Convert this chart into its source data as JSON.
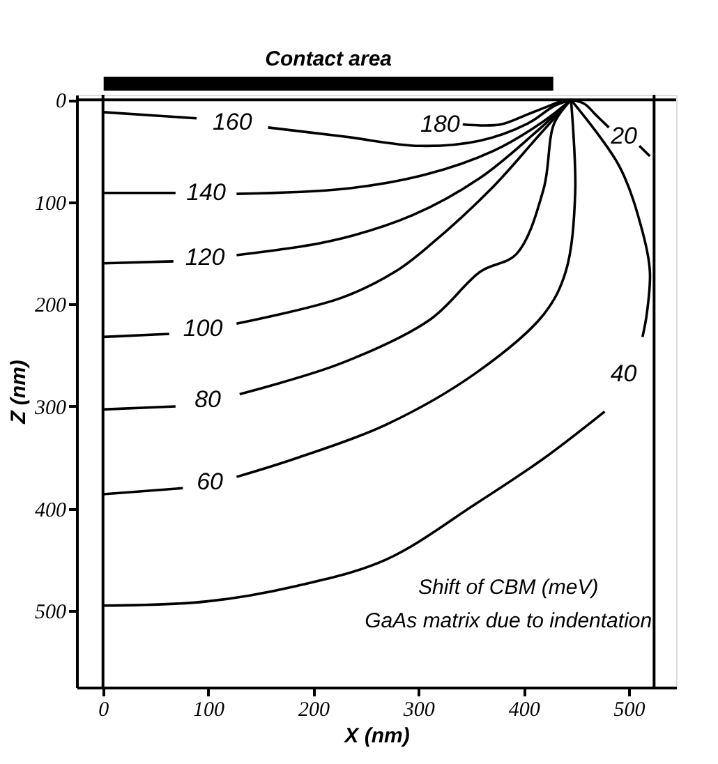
{
  "chart_data": {
    "type": "line",
    "xlabel": "X (nm)",
    "ylabel": "Z (nm)",
    "xlim": [
      -25,
      545
    ],
    "ylim": [
      575,
      -5
    ],
    "xticks": [
      0,
      100,
      200,
      300,
      400,
      500
    ],
    "yticks": [
      0,
      100,
      200,
      300,
      400,
      500
    ],
    "grid": false,
    "marker": "none",
    "line_style": "solid",
    "series": [
      {
        "name": "180",
        "color": "#000000",
        "x": [
          342,
          378,
          404,
          436
        ],
        "values": [
          24,
          24,
          14,
          1
        ]
      },
      {
        "name": "160",
        "color": "#000000",
        "x": [
          0,
          89,
          123,
          157,
          230,
          301,
          358,
          404,
          429,
          445
        ],
        "values": [
          12,
          18,
          null,
          27,
          36,
          45,
          40,
          23,
          6,
          0
        ]
      },
      {
        "name": "140",
        "color": "#000000",
        "x": [
          0,
          69,
          98,
          127,
          230,
          307,
          371,
          416,
          445
        ],
        "values": [
          91,
          91,
          null,
          92,
          87,
          73,
          50,
          23,
          0
        ]
      },
      {
        "name": "120",
        "color": "#000000",
        "x": [
          0,
          67,
          97,
          127,
          217,
          294,
          359,
          410,
          445
        ],
        "values": [
          160,
          158,
          null,
          152,
          138,
          113,
          76,
          33,
          0
        ]
      },
      {
        "name": "100",
        "color": "#000000",
        "x": [
          0,
          63,
          95,
          127,
          226,
          278,
          311,
          371,
          416,
          445
        ],
        "values": [
          232,
          229,
          null,
          219,
          194,
          168,
          142,
          85,
          33,
          0
        ]
      },
      {
        "name": "80",
        "color": "#000000",
        "x": [
          0,
          69,
          100,
          130,
          226,
          311,
          359,
          393,
          419,
          429,
          445
        ],
        "values": [
          303,
          300,
          null,
          288,
          258,
          215,
          168,
          151,
          87,
          23,
          0
        ]
      },
      {
        "name": "60",
        "color": "#000000",
        "x": [
          0,
          76,
          102,
          127,
          183,
          269,
          355,
          419,
          440,
          449,
          445
        ],
        "values": [
          386,
          380,
          null,
          369,
          351,
          318,
          267,
          210,
          168,
          91,
          0
        ]
      },
      {
        "name": "40",
        "color": "#000000",
        "x": [
          445,
          491,
          513,
          520,
          517,
          513,
          495,
          477,
          419,
          355,
          269,
          183,
          98,
          0
        ],
        "values": [
          0,
          65,
          129,
          168,
          210,
          232,
          null,
          305,
          351,
          395,
          450,
          476,
          491,
          495
        ]
      },
      {
        "name": "20",
        "color": "#000000",
        "x": [
          445,
          458,
          468,
          481,
          495,
          510,
          520
        ],
        "values": [
          0,
          4,
          14,
          27,
          null,
          45,
          55
        ]
      }
    ],
    "ref_lines": [
      {
        "axis": "x",
        "value": 0,
        "color": "#000000"
      },
      {
        "axis": "x",
        "value": 524,
        "color": "#000000"
      },
      {
        "axis": "y",
        "value": 0,
        "color": "#000000"
      }
    ],
    "annotations": [
      "Contact area",
      "Shift of CBM (meV)",
      "GaAs matrix due to indentation"
    ]
  }
}
